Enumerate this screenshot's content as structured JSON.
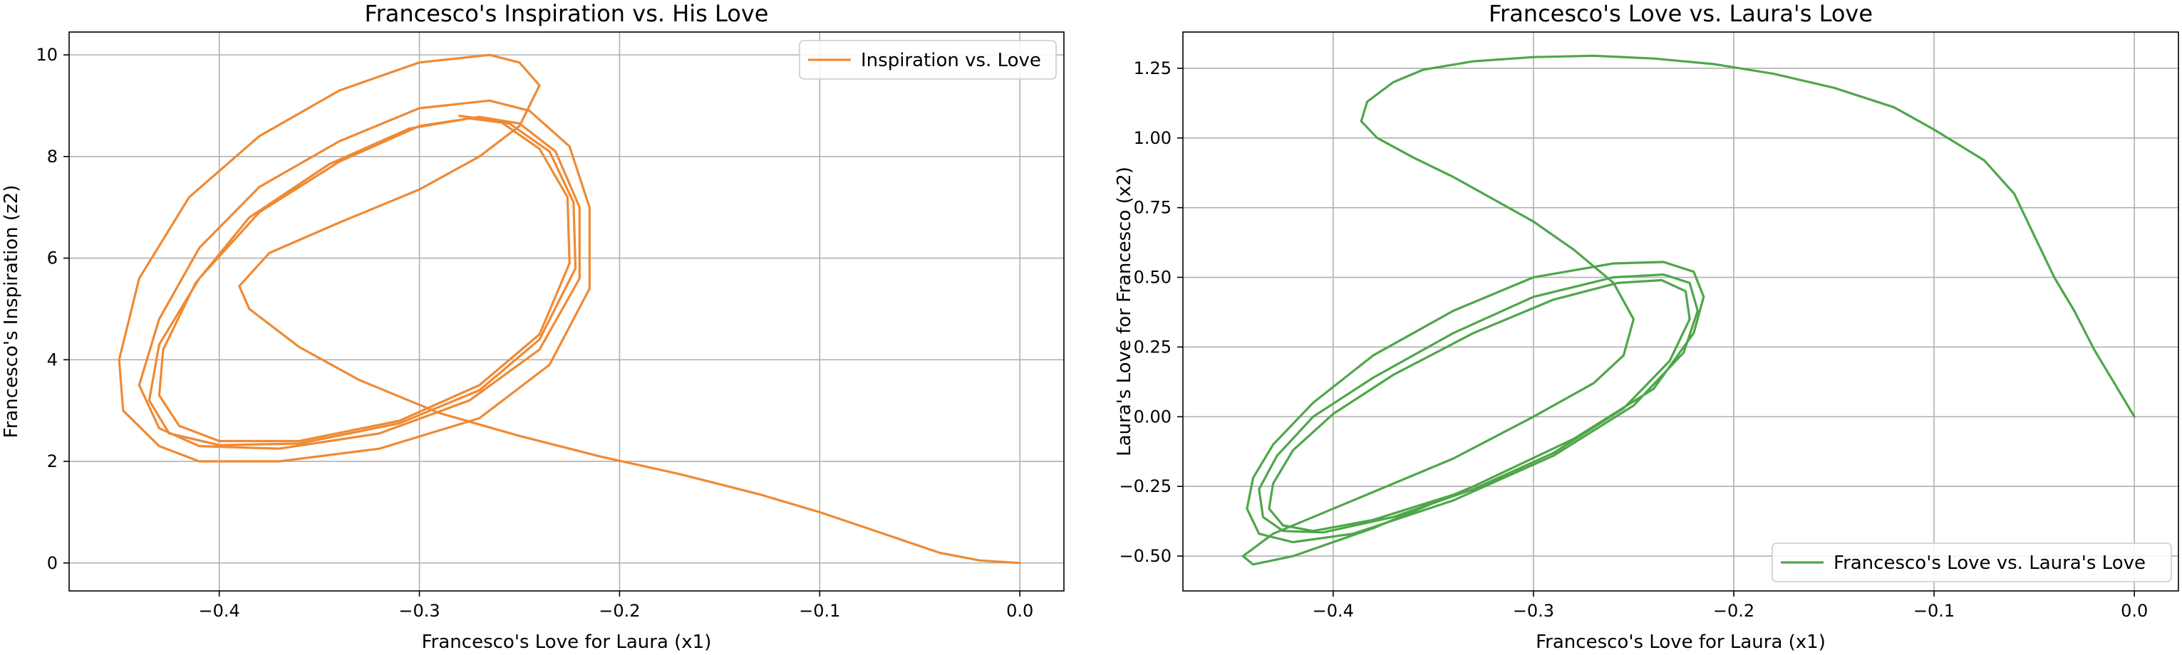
{
  "colors": {
    "orange": "#EF8A34",
    "green": "#4FA64A"
  },
  "chart_data": [
    {
      "type": "line",
      "title": "Francesco's Inspiration vs. His Love",
      "xlabel": "Francesco's Love for Laura (x1)",
      "ylabel": "Francesco's Inspiration (z2)",
      "xlim": [
        -0.475,
        0.022
      ],
      "ylim": [
        -0.55,
        10.45
      ],
      "xticks": [
        -0.4,
        -0.3,
        -0.2,
        -0.1,
        0.0
      ],
      "xtick_labels": [
        "−0.4",
        "−0.3",
        "−0.2",
        "−0.1",
        "0.0"
      ],
      "yticks": [
        0,
        2,
        4,
        6,
        8,
        10
      ],
      "ytick_labels": [
        "0",
        "2",
        "4",
        "6",
        "8",
        "10"
      ],
      "grid": true,
      "legend": "top-right",
      "series": [
        {
          "name": "Inspiration vs. Love",
          "color": "#EF8A34",
          "points": [
            [
              0.0,
              0.0
            ],
            [
              -0.02,
              0.05
            ],
            [
              -0.04,
              0.2
            ],
            [
              -0.07,
              0.6
            ],
            [
              -0.1,
              1.0
            ],
            [
              -0.13,
              1.35
            ],
            [
              -0.17,
              1.75
            ],
            [
              -0.21,
              2.1
            ],
            [
              -0.25,
              2.5
            ],
            [
              -0.29,
              2.95
            ],
            [
              -0.33,
              3.6
            ],
            [
              -0.36,
              4.25
            ],
            [
              -0.385,
              5.0
            ],
            [
              -0.39,
              5.45
            ],
            [
              -0.375,
              6.1
            ],
            [
              -0.34,
              6.7
            ],
            [
              -0.3,
              7.35
            ],
            [
              -0.27,
              8.0
            ],
            [
              -0.25,
              8.6
            ],
            [
              -0.24,
              9.4
            ],
            [
              -0.25,
              9.85
            ],
            [
              -0.265,
              10.0
            ],
            [
              -0.3,
              9.85
            ],
            [
              -0.34,
              9.3
            ],
            [
              -0.38,
              8.4
            ],
            [
              -0.415,
              7.2
            ],
            [
              -0.44,
              5.6
            ],
            [
              -0.45,
              4.0
            ],
            [
              -0.448,
              3.0
            ],
            [
              -0.43,
              2.3
            ],
            [
              -0.41,
              2.0
            ],
            [
              -0.37,
              2.0
            ],
            [
              -0.32,
              2.25
            ],
            [
              -0.27,
              2.85
            ],
            [
              -0.235,
              3.9
            ],
            [
              -0.215,
              5.4
            ],
            [
              -0.215,
              7.0
            ],
            [
              -0.225,
              8.2
            ],
            [
              -0.245,
              8.9
            ],
            [
              -0.265,
              9.1
            ],
            [
              -0.3,
              8.95
            ],
            [
              -0.34,
              8.3
            ],
            [
              -0.38,
              7.4
            ],
            [
              -0.41,
              6.2
            ],
            [
              -0.43,
              4.8
            ],
            [
              -0.44,
              3.5
            ],
            [
              -0.43,
              2.65
            ],
            [
              -0.41,
              2.3
            ],
            [
              -0.37,
              2.25
            ],
            [
              -0.32,
              2.55
            ],
            [
              -0.275,
              3.2
            ],
            [
              -0.24,
              4.2
            ],
            [
              -0.22,
              5.6
            ],
            [
              -0.22,
              7.0
            ],
            [
              -0.232,
              8.1
            ],
            [
              -0.25,
              8.65
            ],
            [
              -0.27,
              8.78
            ],
            [
              -0.3,
              8.6
            ],
            [
              -0.34,
              7.9
            ],
            [
              -0.38,
              6.9
            ],
            [
              -0.41,
              5.6
            ],
            [
              -0.43,
              4.3
            ],
            [
              -0.435,
              3.2
            ],
            [
              -0.425,
              2.55
            ],
            [
              -0.4,
              2.32
            ],
            [
              -0.36,
              2.35
            ],
            [
              -0.31,
              2.75
            ],
            [
              -0.27,
              3.4
            ],
            [
              -0.24,
              4.4
            ],
            [
              -0.222,
              5.8
            ],
            [
              -0.223,
              7.1
            ],
            [
              -0.235,
              8.1
            ],
            [
              -0.255,
              8.65
            ],
            [
              -0.275,
              8.75
            ],
            [
              -0.305,
              8.55
            ],
            [
              -0.345,
              7.85
            ],
            [
              -0.385,
              6.8
            ],
            [
              -0.412,
              5.5
            ],
            [
              -0.428,
              4.2
            ],
            [
              -0.43,
              3.3
            ],
            [
              -0.42,
              2.7
            ],
            [
              -0.4,
              2.4
            ],
            [
              -0.36,
              2.4
            ],
            [
              -0.31,
              2.8
            ],
            [
              -0.27,
              3.5
            ],
            [
              -0.24,
              4.5
            ],
            [
              -0.225,
              5.9
            ],
            [
              -0.226,
              7.2
            ],
            [
              -0.24,
              8.15
            ],
            [
              -0.26,
              8.7
            ],
            [
              -0.28,
              8.8
            ]
          ]
        }
      ]
    },
    {
      "type": "line",
      "title": "Francesco's Love vs. Laura's Love",
      "xlabel": "Francesco's Love for Laura (x1)",
      "ylabel": "Laura's Love for Francesco (x2)",
      "xlim": [
        -0.475,
        0.022
      ],
      "ylim": [
        -0.625,
        1.38
      ],
      "xticks": [
        -0.4,
        -0.3,
        -0.2,
        -0.1,
        0.0
      ],
      "xtick_labels": [
        "−0.4",
        "−0.3",
        "−0.2",
        "−0.1",
        "0.0"
      ],
      "yticks": [
        -0.5,
        -0.25,
        0.0,
        0.25,
        0.5,
        0.75,
        1.0,
        1.25
      ],
      "ytick_labels": [
        "−0.50",
        "−0.25",
        "0.00",
        "0.25",
        "0.50",
        "0.75",
        "1.00",
        "1.25"
      ],
      "grid": true,
      "legend": "bottom-right",
      "series": [
        {
          "name": "Francesco's Love vs. Laura's Love",
          "color": "#4FA64A",
          "points": [
            [
              0.0,
              0.0
            ],
            [
              -0.01,
              0.12
            ],
            [
              -0.02,
              0.24
            ],
            [
              -0.03,
              0.38
            ],
            [
              -0.04,
              0.5
            ],
            [
              -0.05,
              0.65
            ],
            [
              -0.06,
              0.8
            ],
            [
              -0.075,
              0.92
            ],
            [
              -0.1,
              1.03
            ],
            [
              -0.12,
              1.11
            ],
            [
              -0.15,
              1.18
            ],
            [
              -0.18,
              1.23
            ],
            [
              -0.21,
              1.265
            ],
            [
              -0.24,
              1.285
            ],
            [
              -0.27,
              1.295
            ],
            [
              -0.3,
              1.29
            ],
            [
              -0.33,
              1.275
            ],
            [
              -0.355,
              1.245
            ],
            [
              -0.37,
              1.2
            ],
            [
              -0.383,
              1.13
            ],
            [
              -0.386,
              1.06
            ],
            [
              -0.378,
              1.0
            ],
            [
              -0.36,
              0.93
            ],
            [
              -0.34,
              0.86
            ],
            [
              -0.32,
              0.78
            ],
            [
              -0.3,
              0.7
            ],
            [
              -0.28,
              0.6
            ],
            [
              -0.26,
              0.48
            ],
            [
              -0.25,
              0.35
            ],
            [
              -0.255,
              0.22
            ],
            [
              -0.27,
              0.12
            ],
            [
              -0.3,
              0.0
            ],
            [
              -0.34,
              -0.15
            ],
            [
              -0.39,
              -0.3
            ],
            [
              -0.43,
              -0.42
            ],
            [
              -0.445,
              -0.5
            ],
            [
              -0.44,
              -0.53
            ],
            [
              -0.42,
              -0.5
            ],
            [
              -0.38,
              -0.4
            ],
            [
              -0.33,
              -0.25
            ],
            [
              -0.28,
              -0.08
            ],
            [
              -0.24,
              0.1
            ],
            [
              -0.22,
              0.3
            ],
            [
              -0.215,
              0.43
            ],
            [
              -0.22,
              0.52
            ],
            [
              -0.235,
              0.555
            ],
            [
              -0.26,
              0.55
            ],
            [
              -0.3,
              0.5
            ],
            [
              -0.34,
              0.38
            ],
            [
              -0.38,
              0.22
            ],
            [
              -0.41,
              0.05
            ],
            [
              -0.43,
              -0.1
            ],
            [
              -0.44,
              -0.22
            ],
            [
              -0.443,
              -0.33
            ],
            [
              -0.437,
              -0.42
            ],
            [
              -0.42,
              -0.45
            ],
            [
              -0.39,
              -0.42
            ],
            [
              -0.34,
              -0.3
            ],
            [
              -0.29,
              -0.14
            ],
            [
              -0.25,
              0.04
            ],
            [
              -0.225,
              0.23
            ],
            [
              -0.218,
              0.38
            ],
            [
              -0.222,
              0.48
            ],
            [
              -0.235,
              0.51
            ],
            [
              -0.26,
              0.5
            ],
            [
              -0.3,
              0.43
            ],
            [
              -0.34,
              0.3
            ],
            [
              -0.38,
              0.14
            ],
            [
              -0.41,
              0.0
            ],
            [
              -0.428,
              -0.14
            ],
            [
              -0.437,
              -0.26
            ],
            [
              -0.435,
              -0.36
            ],
            [
              -0.425,
              -0.41
            ],
            [
              -0.405,
              -0.415
            ],
            [
              -0.37,
              -0.36
            ],
            [
              -0.33,
              -0.26
            ],
            [
              -0.29,
              -0.13
            ],
            [
              -0.255,
              0.03
            ],
            [
              -0.232,
              0.2
            ],
            [
              -0.222,
              0.35
            ],
            [
              -0.224,
              0.45
            ],
            [
              -0.236,
              0.49
            ],
            [
              -0.258,
              0.48
            ],
            [
              -0.29,
              0.42
            ],
            [
              -0.33,
              0.3
            ],
            [
              -0.37,
              0.15
            ],
            [
              -0.4,
              0.01
            ],
            [
              -0.42,
              -0.12
            ],
            [
              -0.43,
              -0.24
            ],
            [
              -0.432,
              -0.33
            ],
            [
              -0.425,
              -0.39
            ],
            [
              -0.41,
              -0.41
            ],
            [
              -0.38,
              -0.37
            ],
            [
              -0.34,
              -0.28
            ]
          ]
        }
      ]
    }
  ]
}
